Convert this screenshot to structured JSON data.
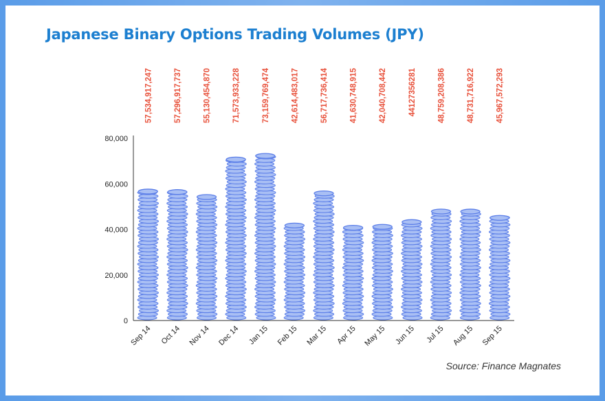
{
  "header": {
    "title": "Japanese Binary Options Trading Volumes (JPY)"
  },
  "footer": {
    "source": "Source: Finance Magnates"
  },
  "colors": {
    "title": "#1c7fd0",
    "coin_fill": "#a9bff4",
    "coin_edge": "#5b7ee8",
    "value_label": "#e8523c",
    "frame": "#5a9ce8"
  },
  "chart_data": {
    "type": "bar",
    "title": "Japanese Binary Options Trading Volumes (JPY)",
    "xlabel": "",
    "ylabel": "",
    "ylim": [
      0,
      80000
    ],
    "yticks": [
      0,
      20000,
      40000,
      60000,
      80000
    ],
    "ytick_labels": [
      "0",
      "20,000",
      "40,000",
      "60,000",
      "80,000"
    ],
    "grid": false,
    "legend": "none",
    "categories": [
      "Sep 14",
      "Oct 14",
      "Nov 14",
      "Dec 14",
      "Jan 15",
      "Feb 15",
      "Mar 15",
      "Apr 15",
      "May 15",
      "Jun 15",
      "Jul 15",
      "Aug 15",
      "Sep 15"
    ],
    "values": [
      57535,
      57297,
      55130,
      71574,
      73160,
      42614,
      56718,
      41631,
      42041,
      44127,
      48759,
      48732,
      45968
    ],
    "value_labels": [
      "57,534,917,247",
      "57,296,917,737",
      "55,130,454,870",
      "71,573,933,228",
      "73,159,769,474",
      "42,614,483,017",
      "56,717,736,414",
      "41,630,748,915",
      "42,040,708,442",
      "44127356281",
      "48,759,208,386",
      "48,731,716,922",
      "45,967,572,293"
    ]
  }
}
